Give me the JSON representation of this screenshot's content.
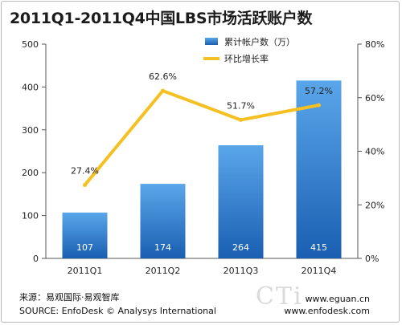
{
  "title": "2011Q1-2011Q4中国LBS市场活跃账户数",
  "chart_data": {
    "type": "bar",
    "categories": [
      "2011Q1",
      "2011Q2",
      "2011Q3",
      "2011Q4"
    ],
    "series": [
      {
        "name": "累计帐户数（万）",
        "type": "bar",
        "axis": "left",
        "values": [
          107,
          174,
          264,
          415
        ],
        "value_labels": [
          "107",
          "174",
          "264",
          "415"
        ]
      },
      {
        "name": "环比增长率",
        "type": "line",
        "axis": "right",
        "values": [
          27.4,
          62.6,
          51.7,
          57.2
        ],
        "value_labels": [
          "27.4%",
          "62.6%",
          "51.7%",
          "57.2%"
        ]
      }
    ],
    "y_left": {
      "range": [
        0,
        500
      ],
      "ticks": [
        "0",
        "100",
        "200",
        "300",
        "400",
        "500"
      ]
    },
    "y_right": {
      "range": [
        0,
        80
      ],
      "unit": "%",
      "ticks": [
        "0%",
        "20%",
        "40%",
        "60%",
        "80%"
      ]
    },
    "legend_position": "top-right",
    "grid": false,
    "colors": {
      "bar_top": "#5aa6ea",
      "bar_bottom": "#1a5fb2",
      "line": "#f5c021",
      "axis": "#555555"
    }
  },
  "footer": {
    "source_cn": "来源：易观国际·易观智库",
    "source_en": "SOURCE: EnfoDesk © Analysys International",
    "site1": "www.eguan.cn",
    "site2": "www.enfodesk.com",
    "watermark": "CTi"
  }
}
